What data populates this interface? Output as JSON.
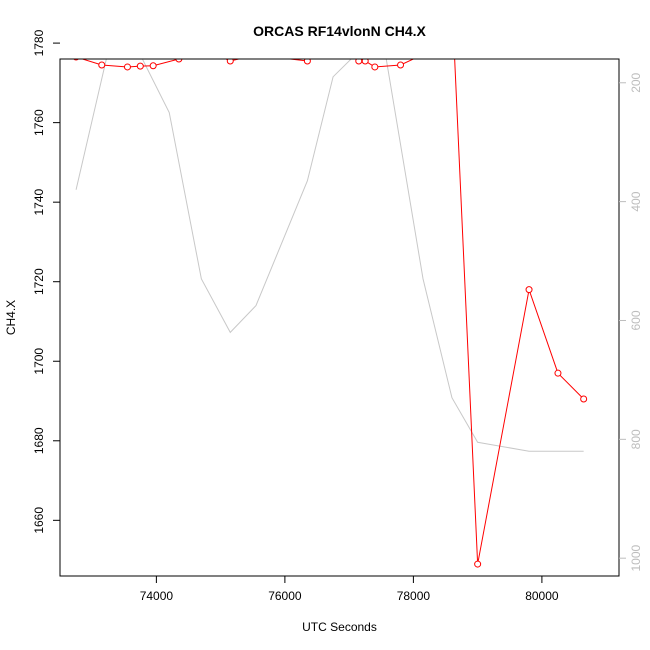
{
  "chart_data": {
    "type": "line",
    "title": "ORCAS RF14vlonN CH4.X",
    "xlabel": "UTC Seconds",
    "ylabel": "CH4.X",
    "xlim": [
      72500,
      81200
    ],
    "ylim": [
      1646,
      1776
    ],
    "x_ticks": [
      74000,
      76000,
      78000,
      80000
    ],
    "y_ticks": [
      1660,
      1680,
      1700,
      1720,
      1740,
      1760,
      1780
    ],
    "y2_ticks": [
      200,
      400,
      600,
      800,
      1000
    ],
    "y2lim": [
      160,
      1030
    ],
    "y2_inverted": true,
    "series": [
      {
        "role": "primary",
        "color": "#ff0000",
        "marker": "open-circle",
        "x": [
          72750,
          73150,
          73550,
          73750,
          73950,
          74350,
          74750,
          75150,
          75550,
          76350,
          76750,
          77150,
          77250,
          77400,
          77800,
          78200,
          78600,
          79000,
          79800,
          80250,
          80650
        ],
        "y": [
          1776.5,
          1774.5,
          1774,
          1774.2,
          1774.3,
          1776,
          1778.5,
          1775.5,
          1777,
          1775.5,
          1780,
          1775.5,
          1775.5,
          1774,
          1774.5,
          1777.5,
          1791,
          1649,
          1718,
          1697,
          1690.5
        ]
      },
      {
        "role": "secondary",
        "color": "#c8c8c8",
        "marker": "none",
        "axis": "right",
        "x": [
          72750,
          73350,
          73550,
          74200,
          74700,
          75150,
          75550,
          76350,
          76750,
          77500,
          78150,
          78600,
          79000,
          79800,
          80250,
          80650
        ],
        "y": [
          380,
          100,
          110,
          250,
          530,
          620,
          575,
          365,
          190,
          110,
          530,
          730,
          805,
          820,
          820,
          820
        ]
      }
    ]
  }
}
